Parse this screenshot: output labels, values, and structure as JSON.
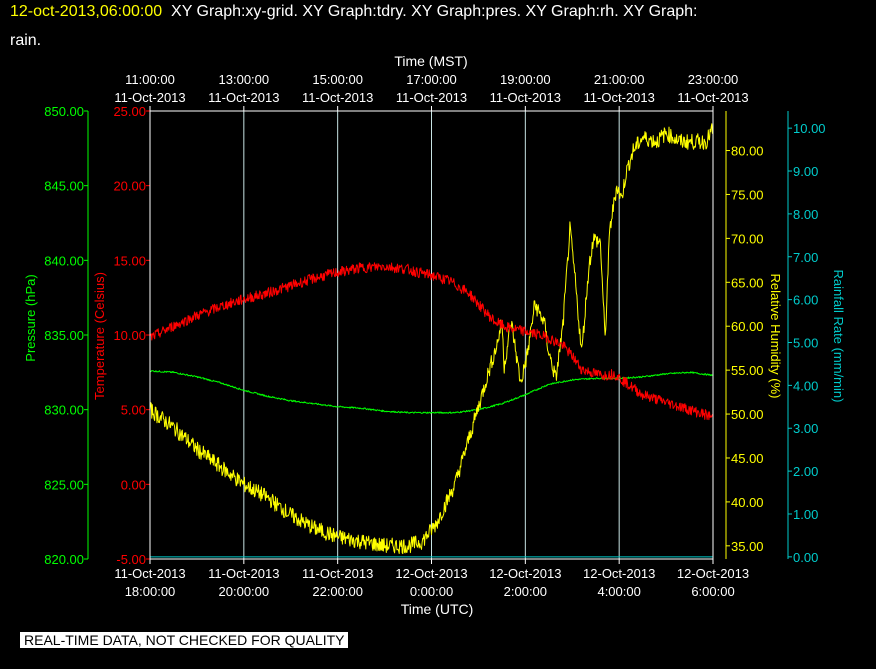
{
  "header": {
    "timestamp": "12-oct-2013,06:00:00",
    "title_rest": "XY Graph:xy-grid.  XY Graph:tdry.  XY Graph:pres.  XY Graph:rh.  XY Graph:",
    "title_line2": "rain."
  },
  "footer": {
    "text": "REAL-TIME DATA, NOT CHECKED FOR QUALITY"
  },
  "chart_data": {
    "type": "line",
    "grid": true,
    "x_top": {
      "label": "Time (MST)",
      "ticks": [
        {
          "time": "11:00:00",
          "date": "11-Oct-2013"
        },
        {
          "time": "13:00:00",
          "date": "11-Oct-2013"
        },
        {
          "time": "15:00:00",
          "date": "11-Oct-2013"
        },
        {
          "time": "17:00:00",
          "date": "11-Oct-2013"
        },
        {
          "time": "19:00:00",
          "date": "11-Oct-2013"
        },
        {
          "time": "21:00:00",
          "date": "11-Oct-2013"
        },
        {
          "time": "23:00:00",
          "date": "11-Oct-2013"
        }
      ]
    },
    "x_bottom": {
      "label": "Time (UTC)",
      "range_hours": [
        0,
        12
      ],
      "ticks": [
        {
          "date": "11-Oct-2013",
          "time": "18:00:00"
        },
        {
          "date": "11-Oct-2013",
          "time": "20:00:00"
        },
        {
          "date": "11-Oct-2013",
          "time": "22:00:00"
        },
        {
          "date": "12-Oct-2013",
          "time": "0:00:00"
        },
        {
          "date": "12-Oct-2013",
          "time": "2:00:00"
        },
        {
          "date": "12-Oct-2013",
          "time": "4:00:00"
        },
        {
          "date": "12-Oct-2013",
          "time": "6:00:00"
        }
      ]
    },
    "axes": {
      "pressure": {
        "label": "Pressure (hPa)",
        "color": "#00ff00",
        "range": [
          820,
          850
        ],
        "ticks": [
          "820.00",
          "825.00",
          "830.00",
          "835.00",
          "840.00",
          "845.00",
          "850.00"
        ]
      },
      "temperature": {
        "label": "Temperature (Celsius)",
        "color": "#ff0000",
        "range": [
          -5,
          25
        ],
        "ticks": [
          "-5.00",
          "0.00",
          "5.00",
          "10.00",
          "15.00",
          "20.00",
          "25.00"
        ]
      },
      "humidity": {
        "label": "Relative Humidity (%)",
        "color": "#ffff00",
        "range": [
          33.5,
          84.5
        ],
        "ticks": [
          "35.00",
          "40.00",
          "45.00",
          "50.00",
          "55.00",
          "60.00",
          "65.00",
          "70.00",
          "75.00",
          "80.00"
        ]
      },
      "rain": {
        "label": "Rainfall Rate (mm/min)",
        "color": "#00cccc",
        "range": [
          -0.05,
          10.4
        ],
        "ticks": [
          "0.00",
          "1.00",
          "2.00",
          "3.00",
          "4.00",
          "5.00",
          "6.00",
          "7.00",
          "8.00",
          "9.00",
          "10.00"
        ]
      }
    },
    "series": [
      {
        "key": "temperature",
        "x": [
          0,
          0.25,
          0.5,
          1,
          1.5,
          2,
          2.5,
          3,
          3.5,
          4,
          4.5,
          5,
          5.5,
          5.7,
          6,
          6.4,
          6.8,
          7.1,
          7.35,
          7.6,
          7.9,
          8.2,
          8.5,
          8.8,
          9.0,
          9.2,
          9.5,
          9.7,
          9.9,
          10.1,
          10.5,
          11,
          11.5,
          12
        ],
        "y": [
          9.8,
          10.2,
          10.6,
          11.3,
          11.9,
          12.4,
          12.8,
          13.3,
          13.8,
          14.2,
          14.5,
          14.6,
          14.4,
          14.2,
          14.0,
          13.6,
          12.8,
          11.7,
          10.9,
          10.5,
          10.3,
          10.1,
          9.8,
          9.3,
          8.6,
          7.7,
          7.4,
          7.3,
          7.4,
          6.9,
          6.0,
          5.5,
          5.0,
          4.5
        ]
      },
      {
        "key": "pressure",
        "x": [
          0,
          0.5,
          1,
          1.5,
          2,
          2.5,
          3,
          3.5,
          4,
          4.5,
          5,
          5.5,
          6,
          6.5,
          7,
          7.5,
          8,
          8.5,
          9,
          9.5,
          10,
          10.5,
          11,
          11.5,
          12
        ],
        "y": [
          832.6,
          832.5,
          832.2,
          831.8,
          831.3,
          830.9,
          830.6,
          830.4,
          830.2,
          830.1,
          829.9,
          829.8,
          829.8,
          829.8,
          830.0,
          830.4,
          831.0,
          831.7,
          832.0,
          832.1,
          832.1,
          832.2,
          832.4,
          832.5,
          832.3
        ]
      },
      {
        "key": "humidity",
        "x": [
          0,
          0.5,
          1,
          1.5,
          2,
          2.5,
          3,
          3.5,
          4,
          4.5,
          5,
          5.5,
          5.8,
          6.1,
          6.5,
          6.9,
          7.2,
          7.4,
          7.5,
          7.55,
          7.7,
          7.9,
          8.05,
          8.2,
          8.4,
          8.5,
          8.65,
          8.8,
          8.95,
          9.05,
          9.2,
          9.35,
          9.45,
          9.6,
          9.7,
          9.8,
          9.95,
          10.05,
          10.15,
          10.3,
          10.5,
          10.8,
          11,
          11.3,
          11.6,
          11.85,
          12
        ],
        "y": [
          50.5,
          48.5,
          46.0,
          44.0,
          42.0,
          40.5,
          38.5,
          37.0,
          36.0,
          35.5,
          35.0,
          35.0,
          35.5,
          37.5,
          42.0,
          49.0,
          54.5,
          58.0,
          60.5,
          55.5,
          60.5,
          53.5,
          57.0,
          62.5,
          60.5,
          57.0,
          54.0,
          60.0,
          71.0,
          66.0,
          57.0,
          66.5,
          70.0,
          69.5,
          58.5,
          71.0,
          76.0,
          74.5,
          77.5,
          80.0,
          81.5,
          81.0,
          82.0,
          81.0,
          81.0,
          81.0,
          82.5
        ]
      },
      {
        "key": "rain",
        "x": [
          0,
          12
        ],
        "y": [
          0,
          0
        ]
      }
    ]
  }
}
